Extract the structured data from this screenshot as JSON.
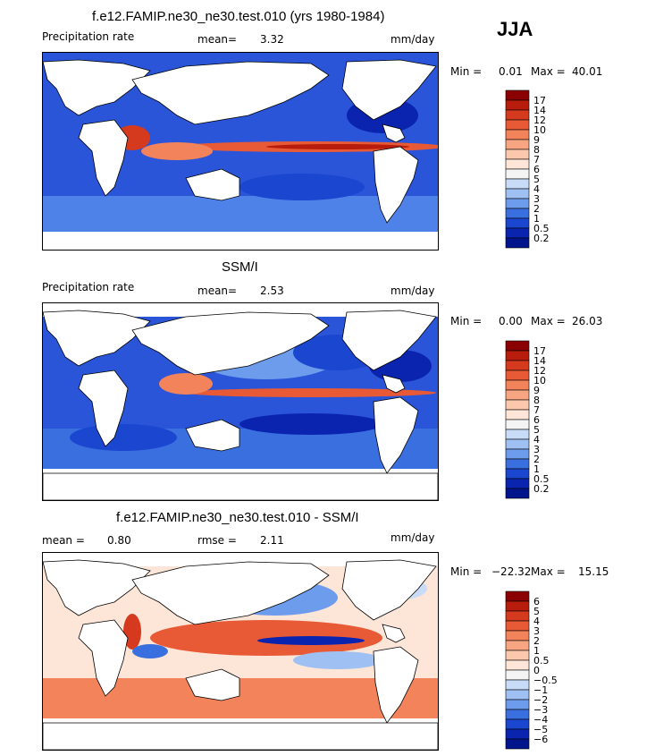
{
  "season": "JJA",
  "panels": [
    {
      "title": "f.e12.FAMIP.ne30_ne30.test.010 (yrs 1980-1984)",
      "left_label": "Precipitation rate",
      "center_label": "mean=",
      "center_value": "3.32",
      "units": "mm/day",
      "range": {
        "min_label": "Min =",
        "min": "0.01",
        "max_label": "Max =",
        "max": "40.01"
      },
      "colorbar": {
        "levels": [
          "17",
          "14",
          "12",
          "10",
          "9",
          "8",
          "7",
          "6",
          "5",
          "4",
          "3",
          "2",
          "1",
          "0.5",
          "0.2"
        ],
        "colors": [
          "#8b0000",
          "#b71c0c",
          "#d63a1e",
          "#e85a35",
          "#f2835a",
          "#f7a582",
          "#fbc8ad",
          "#fde6d8",
          "#f4f4f4",
          "#c8dcf8",
          "#9ec0f2",
          "#6e9cec",
          "#3a6fe0",
          "#1a46d0",
          "#0a24b0",
          "#00148c"
        ]
      }
    },
    {
      "title": "SSM/I",
      "left_label": "Precipitation rate",
      "center_label": "mean=",
      "center_value": "2.53",
      "units": "mm/day",
      "range": {
        "min_label": "Min =",
        "min": "0.00",
        "max_label": "Max =",
        "max": "26.03"
      },
      "colorbar": {
        "levels": [
          "17",
          "14",
          "12",
          "10",
          "9",
          "8",
          "7",
          "6",
          "5",
          "4",
          "3",
          "2",
          "1",
          "0.5",
          "0.2"
        ],
        "colors": [
          "#8b0000",
          "#b71c0c",
          "#d63a1e",
          "#e85a35",
          "#f2835a",
          "#f7a582",
          "#fbc8ad",
          "#fde6d8",
          "#f4f4f4",
          "#c8dcf8",
          "#9ec0f2",
          "#6e9cec",
          "#3a6fe0",
          "#1a46d0",
          "#0a24b0",
          "#00148c"
        ]
      }
    },
    {
      "title": "f.e12.FAMIP.ne30_ne30.test.010 - SSM/I",
      "left_label": "mean =",
      "left_value": "0.80",
      "center_label": "rmse =",
      "center_value": "2.11",
      "units": "mm/day",
      "range": {
        "min_label": "Min =",
        "min": "−22.32",
        "max_label": "Max =",
        "max": "15.15"
      },
      "colorbar": {
        "levels": [
          "6",
          "5",
          "4",
          "3",
          "2",
          "1",
          "0.5",
          "0",
          "−0.5",
          "−1",
          "−2",
          "−3",
          "−4",
          "−5",
          "−6"
        ],
        "colors": [
          "#8b0000",
          "#b71c0c",
          "#d63a1e",
          "#e85a35",
          "#f2835a",
          "#f7a582",
          "#fbc8ad",
          "#fde6d8",
          "#f4f4f4",
          "#c8dcf8",
          "#9ec0f2",
          "#6e9cec",
          "#3a6fe0",
          "#1a46d0",
          "#0a24b0",
          "#00148c"
        ]
      }
    }
  ]
}
